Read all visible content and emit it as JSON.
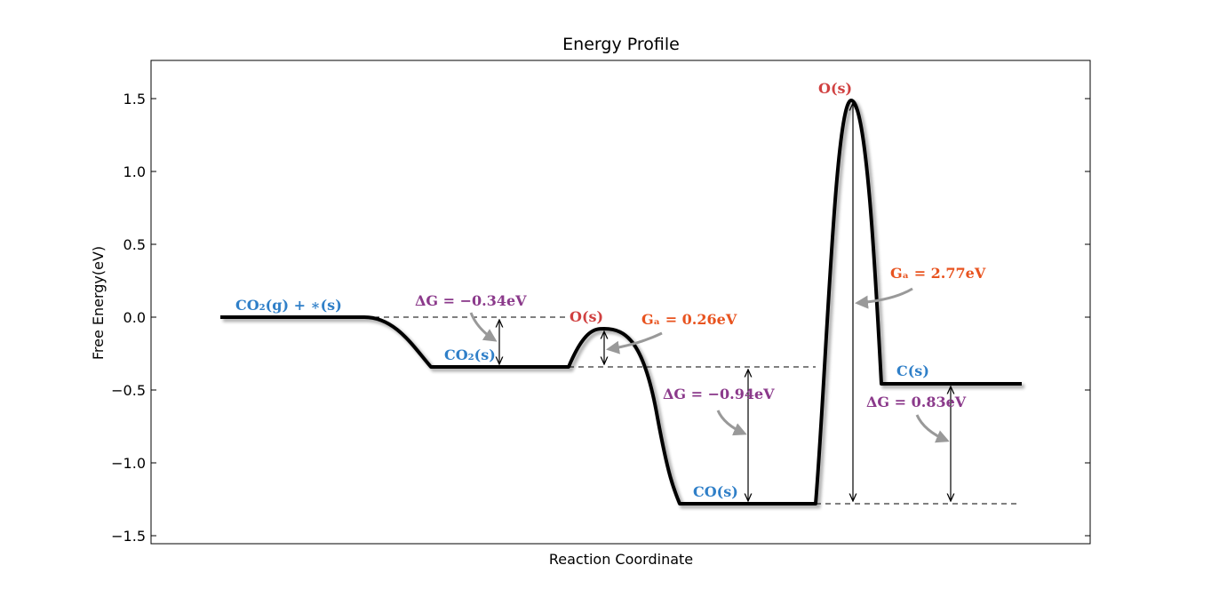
{
  "chart_data": {
    "type": "line",
    "title": "Energy Profile",
    "xlabel": "Reaction Coordinate",
    "ylabel": "Free Energy(eV)",
    "ylim": [
      -1.6,
      1.75
    ],
    "yticks": [
      1.5,
      1.0,
      0.5,
      0.0,
      -0.5,
      -1.0,
      -1.5
    ],
    "ytick_labels": [
      "1.5",
      "1.0",
      "0.5",
      "0.0",
      "−0.5",
      "−1.0",
      "−1.5"
    ],
    "grid": false,
    "states": [
      {
        "name": "CO2(g) + *(s)",
        "energy": 0.0
      },
      {
        "name": "CO2(s)",
        "energy": -0.34
      },
      {
        "name": "CO(s)",
        "energy": -1.28
      },
      {
        "name": "C(s)",
        "energy": -0.45
      }
    ],
    "barriers": [
      {
        "name": "O(s)",
        "energy": -0.08,
        "Ga": 0.26
      },
      {
        "name": "O(s)",
        "energy": 1.49,
        "Ga": 2.77
      }
    ],
    "colors": {
      "state_label": "#2f7fc8",
      "barrier_label": "#d04040",
      "delta_g": "#8b3a8b",
      "ga": "#e8531f",
      "pointer": "#999999",
      "curve": "#000000"
    },
    "annotations": [
      {
        "kind": "state",
        "text": "CO₂(g) + ∗(s)"
      },
      {
        "kind": "state",
        "text": "CO₂(s)"
      },
      {
        "kind": "state",
        "text": "CO(s)"
      },
      {
        "kind": "state",
        "text": "C(s)"
      },
      {
        "kind": "barrier",
        "text": "O(s)"
      },
      {
        "kind": "barrier",
        "text": "O(s)"
      },
      {
        "kind": "delta_g",
        "text": "ΔG = −0.34eV"
      },
      {
        "kind": "delta_g",
        "text": "ΔG = −0.94eV"
      },
      {
        "kind": "delta_g",
        "text": "ΔG = 0.83eV"
      },
      {
        "kind": "ga",
        "text": "Gₐ = 0.26eV"
      },
      {
        "kind": "ga",
        "text": "Gₐ = 2.77eV"
      }
    ]
  }
}
